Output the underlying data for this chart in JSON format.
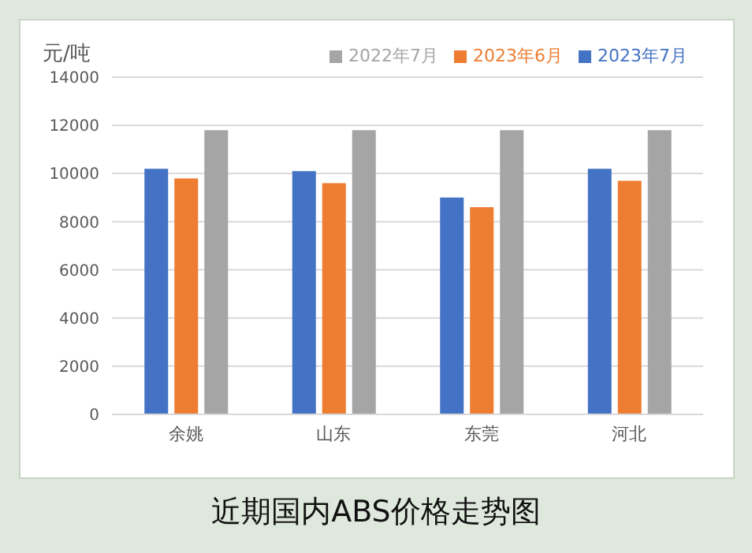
{
  "chart_data": {
    "type": "bar",
    "title": "近期国内ABS价格走势图",
    "ylabel": "元/吨",
    "categories": [
      "余姚",
      "山东",
      "东莞",
      "河北"
    ],
    "series": [
      {
        "name": "2023年7月",
        "color": "#4472c4",
        "values": [
          10200,
          10100,
          9000,
          10200
        ]
      },
      {
        "name": "2023年6月",
        "color": "#ed7d31",
        "values": [
          9800,
          9600,
          8600,
          9700
        ]
      },
      {
        "name": "2022年7月",
        "color": "#a5a5a5",
        "values": [
          11800,
          11800,
          11800,
          11800
        ]
      }
    ],
    "ylim": [
      0,
      14000
    ],
    "yticks": [
      0,
      2000,
      4000,
      6000,
      8000,
      10000,
      12000,
      14000
    ],
    "grid": "y",
    "legend": "top right"
  }
}
